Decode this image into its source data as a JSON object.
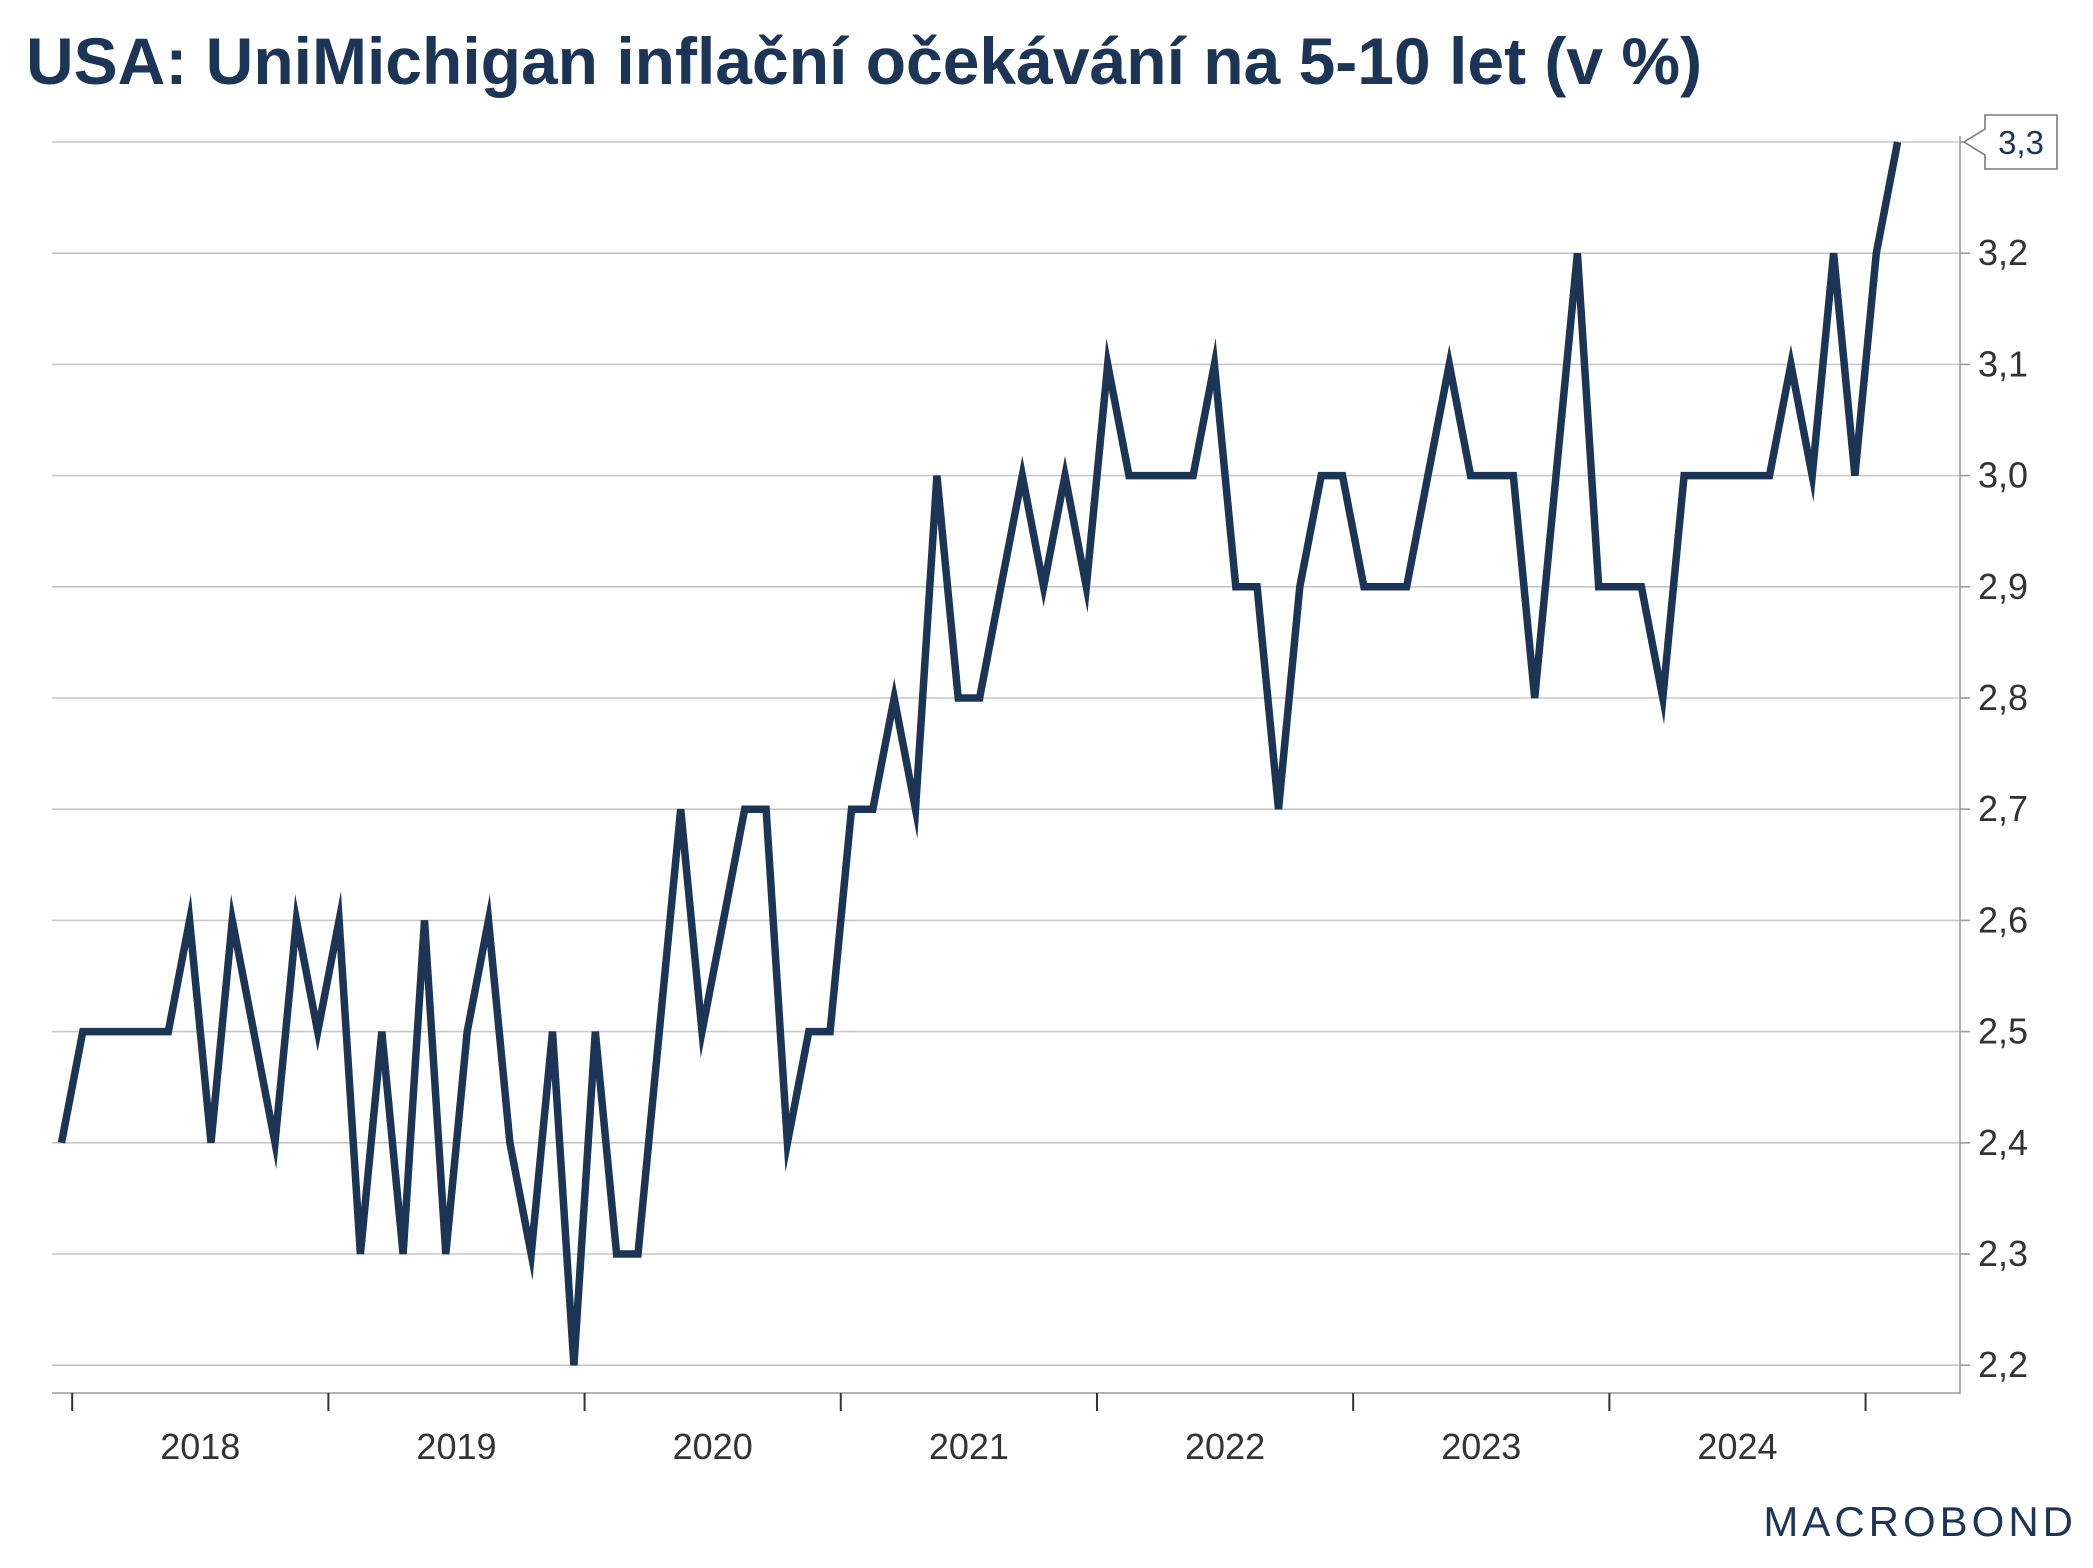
{
  "colors": {
    "line": "#1c3557",
    "title": "#1c3557",
    "grid": "#c8c8c8",
    "axis": "#9a9a9a",
    "tick_text": "#333333",
    "logo": "#1d3557"
  },
  "brand": {
    "logo_text": "MACROBOND"
  },
  "chart_data": {
    "type": "line",
    "title": "USA: UniMichigan inflační očekávání na 5-10 let (v %)",
    "xlabel": "",
    "ylabel": "",
    "x_start": "2017-12",
    "ylim": [
      2.175,
      3.3
    ],
    "y_axis_side": "right",
    "yticks": [
      2.2,
      2.3,
      2.4,
      2.5,
      2.6,
      2.7,
      2.8,
      2.9,
      3.0,
      3.1,
      3.2,
      3.3
    ],
    "ytick_labels": [
      "2,2",
      "2,3",
      "2,4",
      "2,5",
      "2,6",
      "2,7",
      "2,8",
      "2,9",
      "3,0",
      "3,1",
      "3,2",
      ""
    ],
    "xtick_labels": [
      "2018",
      "2019",
      "2020",
      "2021",
      "2022",
      "2023",
      "2024"
    ],
    "grid": true,
    "legend": "none",
    "series": [
      {
        "values": [
          2.4,
          2.5,
          2.5,
          2.5,
          2.5,
          2.5,
          2.6,
          2.4,
          2.6,
          2.5,
          2.4,
          2.6,
          2.5,
          2.6,
          2.3,
          2.5,
          2.3,
          2.6,
          2.3,
          2.5,
          2.6,
          2.4,
          2.3,
          2.5,
          2.2,
          2.5,
          2.3,
          2.3,
          2.5,
          2.7,
          2.5,
          2.6,
          2.7,
          2.7,
          2.4,
          2.5,
          2.5,
          2.7,
          2.7,
          2.8,
          2.7,
          3.0,
          2.8,
          2.8,
          2.9,
          3.0,
          2.9,
          3.0,
          2.9,
          3.1,
          3.0,
          3.0,
          3.0,
          3.0,
          3.1,
          2.9,
          2.9,
          2.7,
          2.9,
          3.0,
          3.0,
          2.9,
          2.9,
          2.9,
          3.0,
          3.1,
          3.0,
          3.0,
          3.0,
          2.8,
          3.0,
          3.2,
          2.9,
          2.9,
          2.9,
          2.8,
          3.0,
          3.0,
          3.0,
          3.0,
          3.0,
          3.1,
          3.0,
          3.2,
          3.0,
          3.2,
          3.3
        ]
      }
    ],
    "annotations": [
      {
        "text": "3,3",
        "value": 3.3
      }
    ]
  }
}
